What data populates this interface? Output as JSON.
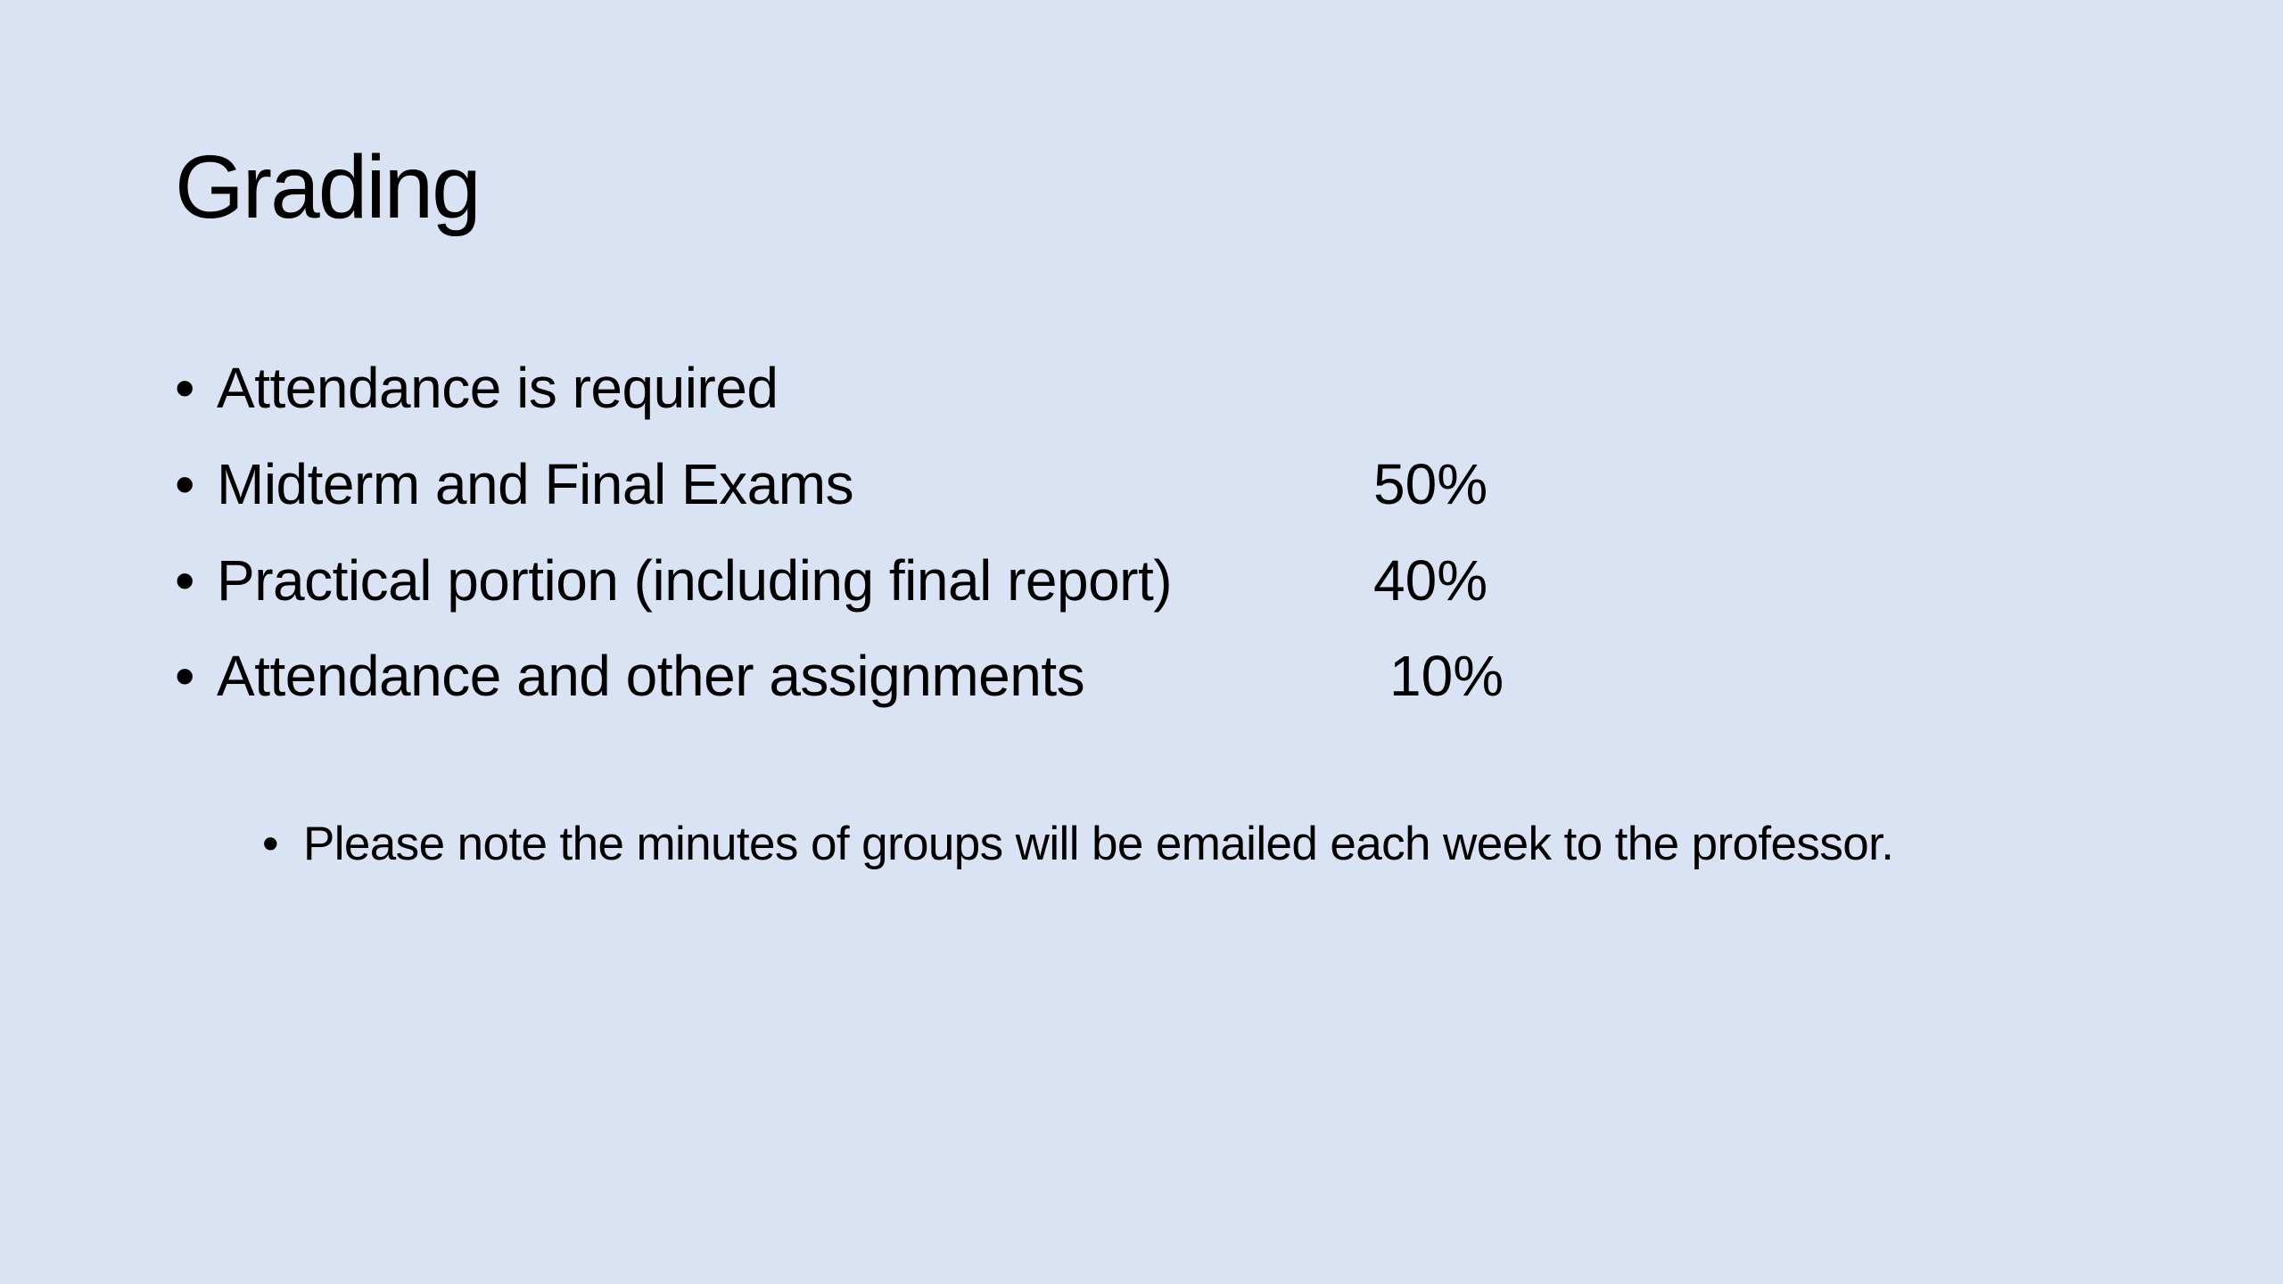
{
  "slide": {
    "title": "Grading",
    "bullet_glyph": "•",
    "items": [
      {
        "text": "Attendance is required",
        "value": ""
      },
      {
        "text": "Midterm and Final Exams",
        "value": "50%"
      },
      {
        "text": "Practical portion (including final report)",
        "value": "40%"
      },
      {
        "text": "Attendance and other assignments",
        "value": "10%"
      }
    ],
    "note": "Please note the minutes of groups will be emailed each week to the professor.",
    "background_color": "#dae3f3"
  }
}
